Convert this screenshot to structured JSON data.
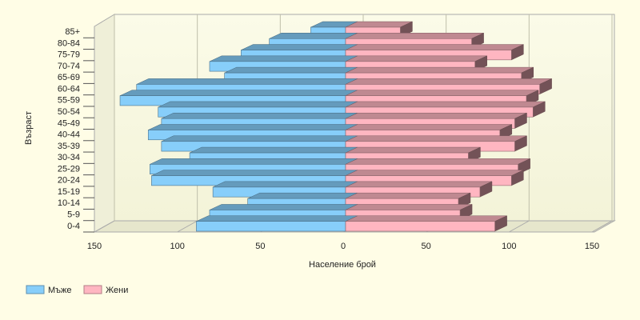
{
  "chart_data": {
    "type": "bar",
    "x_label": "Население брой",
    "y_label": "Възраст",
    "categories": [
      "0-4",
      "5-9",
      "10-14",
      "15-19",
      "20-24",
      "25-29",
      "30-34",
      "35-39",
      "40-44",
      "45-49",
      "50-54",
      "55-59",
      "60-64",
      "65-69",
      "70-74",
      "75-79",
      "80-84",
      "85+"
    ],
    "series": [
      {
        "name": "Мъже",
        "color": "#87cefa",
        "values": [
          -90,
          -82,
          -59,
          -80,
          -117,
          -118,
          -94,
          -111,
          -119,
          -111,
          -113,
          -136,
          -126,
          -73,
          -82,
          -63,
          -46,
          -21
        ]
      },
      {
        "name": "Жени",
        "color": "#ffb6c1",
        "values": [
          90,
          69,
          68,
          81,
          100,
          104,
          74,
          102,
          93,
          102,
          113,
          109,
          117,
          106,
          78,
          100,
          76,
          33
        ]
      }
    ],
    "xlim": [
      -150,
      150
    ],
    "xticks": [
      {
        "value": -150,
        "label": "150"
      },
      {
        "value": -100,
        "label": "100"
      },
      {
        "value": -50,
        "label": "50"
      },
      0,
      50,
      100,
      150
    ],
    "grid": true
  }
}
